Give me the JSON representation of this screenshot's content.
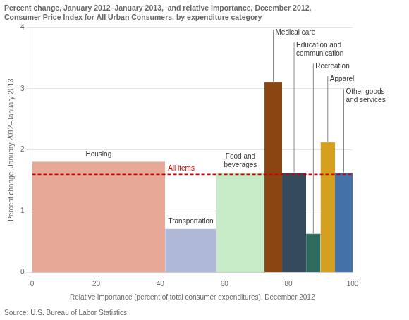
{
  "chart_data": {
    "type": "bar",
    "title": [
      "Percent change, January 2012–January 2013,  and relative importance, December 2012,",
      "Consumer Price Index for All Urban Consumers, by expenditure category"
    ],
    "xlabel": "Relative importance (percent of total consumer expenditures), December 2012",
    "ylabel": "Percent change, January 2012–January 2013",
    "source": "Source: U.S. Bureau of Labor Statistics",
    "bins": [
      0.0,
      41.5,
      57.5,
      72.5,
      78.0,
      85.5,
      90.0,
      94.5,
      100.0
    ],
    "categories": [
      "Housing",
      "Transportation",
      "Food and\nbeverages",
      "Medical care",
      "Education and\ncommunication",
      "Recreation",
      "Apparel",
      "Other goods\nand services"
    ],
    "values": [
      1.8,
      0.7,
      1.62,
      3.1,
      1.62,
      0.62,
      2.12,
      1.62
    ],
    "colors": [
      "#E8A898",
      "#B0B8D8",
      "#C8ECC8",
      "#8B4513",
      "#354A5A",
      "#2E6B5E",
      "#D4A020",
      "#4472A8"
    ],
    "annotations": [
      {
        "text": "All items",
        "y": 1.6,
        "color": "#CC0000",
        "line_style": "dashed"
      }
    ],
    "xlim": [
      0,
      100
    ],
    "ylim": [
      0,
      4.0
    ],
    "xticks": [
      0,
      20,
      40,
      60,
      80,
      100
    ],
    "yticks": [
      0,
      1,
      2,
      3,
      4
    ],
    "grid": "y"
  }
}
